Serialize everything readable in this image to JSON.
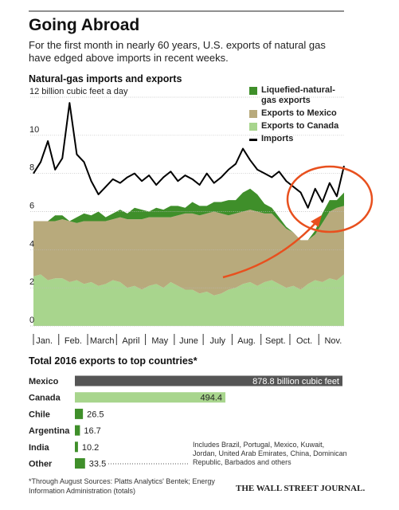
{
  "header": {
    "title": "Going Abroad",
    "subtitle": "For the first month in nearly 60 years, U.S. exports of natural gas have edged above imports in recent weeks."
  },
  "chart_data": [
    {
      "type": "stacked-area-line",
      "title": "Natural-gas imports and exports",
      "categories": [
        "Jan.",
        null,
        null,
        null,
        "Feb.",
        null,
        null,
        null,
        "March",
        null,
        null,
        null,
        "April",
        null,
        null,
        null,
        "May",
        null,
        null,
        null,
        "June",
        null,
        null,
        null,
        "July",
        null,
        null,
        null,
        "Aug.",
        null,
        null,
        null,
        "Sept.",
        null,
        null,
        null,
        "Oct.",
        null,
        null,
        null,
        "Nov.",
        null,
        null,
        null
      ],
      "ylim": [
        0,
        12
      ],
      "yticks": [
        0,
        2,
        4,
        6,
        8,
        10,
        {
          "value": 12,
          "label": "12 billion cubic feet a day"
        }
      ],
      "grid": true,
      "series": [
        {
          "name": "Exports to Canada",
          "color": "#a8d58d",
          "stack": true,
          "values": [
            2.6,
            2.7,
            2.4,
            2.5,
            2.5,
            2.3,
            2.4,
            2.2,
            2.3,
            2.1,
            2.2,
            2.4,
            2.3,
            2.0,
            2.1,
            1.9,
            2.1,
            2.2,
            2.0,
            2.3,
            2.1,
            1.9,
            1.9,
            1.7,
            1.8,
            1.6,
            1.7,
            1.9,
            2.0,
            2.2,
            2.3,
            2.1,
            2.3,
            2.4,
            2.2,
            2.0,
            2.1,
            1.9,
            2.2,
            2.4,
            2.3,
            2.5,
            2.4,
            2.7
          ]
        },
        {
          "name": "Exports to Mexico",
          "color": "#b8aa7c",
          "stack": true,
          "values": [
            2.9,
            2.8,
            3.1,
            3.0,
            3.1,
            3.2,
            3.0,
            3.3,
            3.2,
            3.4,
            3.3,
            3.2,
            3.4,
            3.6,
            3.5,
            3.7,
            3.6,
            3.5,
            3.7,
            3.4,
            3.7,
            4.0,
            4.0,
            4.1,
            4.1,
            4.4,
            4.2,
            3.9,
            3.9,
            3.8,
            3.8,
            3.9,
            3.6,
            3.5,
            3.3,
            3.1,
            2.8,
            2.6,
            2.3,
            2.4,
            3.1,
            3.5,
            3.8,
            3.6
          ]
        },
        {
          "name": "Liquefied-natural-gas exports",
          "color": "#3f8f2a",
          "stack": true,
          "values": [
            0,
            0,
            0,
            0.3,
            0.2,
            0,
            0.3,
            0.4,
            0.3,
            0.5,
            0.2,
            0.3,
            0.4,
            0.3,
            0.6,
            0.5,
            0.3,
            0.5,
            0.4,
            0.6,
            0.5,
            0.3,
            0.6,
            0.5,
            0.4,
            0.5,
            0.6,
            0.8,
            0.7,
            1.0,
            1.1,
            0.9,
            0.5,
            0.3,
            0.2,
            0.1,
            0,
            0,
            0,
            0.2,
            0.5,
            0.6,
            0.4,
            0.7
          ]
        },
        {
          "name": "Imports",
          "color": "#000000",
          "stack": false,
          "values": [
            8.0,
            8.6,
            9.7,
            8.2,
            8.8,
            11.7,
            9.0,
            8.6,
            7.6,
            6.9,
            7.3,
            7.7,
            7.5,
            7.8,
            8.0,
            7.6,
            7.9,
            7.4,
            7.8,
            8.1,
            7.6,
            7.9,
            7.7,
            7.4,
            8.0,
            7.5,
            7.8,
            8.2,
            8.5,
            9.3,
            8.7,
            8.2,
            8.0,
            7.8,
            8.1,
            7.6,
            7.3,
            7.0,
            6.2,
            7.2,
            6.5,
            7.5,
            6.8,
            8.4
          ]
        }
      ]
    },
    {
      "type": "hbar",
      "title": "Total 2016 exports to top countries*",
      "categories": [
        "Mexico",
        "Canada",
        "Chile",
        "Argentina",
        "India",
        "Other"
      ],
      "values": [
        878.8,
        494.4,
        26.5,
        16.7,
        10.2,
        33.5
      ],
      "value_labels": [
        "878.8 billion cubic feet",
        "494.4",
        "26.5",
        "16.7",
        "10.2",
        "33.5"
      ],
      "colors": [
        "#555555",
        "#a8d58d",
        "#3f8f2a",
        "#3f8f2a",
        "#3f8f2a",
        "#3f8f2a"
      ],
      "annotation": "Includes Brazil, Portugal, Mexico, Kuwait, Jordan, United Arab Emirates, China, Dominican Republic, Barbados and others"
    }
  ],
  "footer": {
    "source": "*Through August  Sources: Platts Analytics' Bentek; Energy Information Administration (totals)",
    "brand": "THE WALL STREET JOURNAL."
  }
}
